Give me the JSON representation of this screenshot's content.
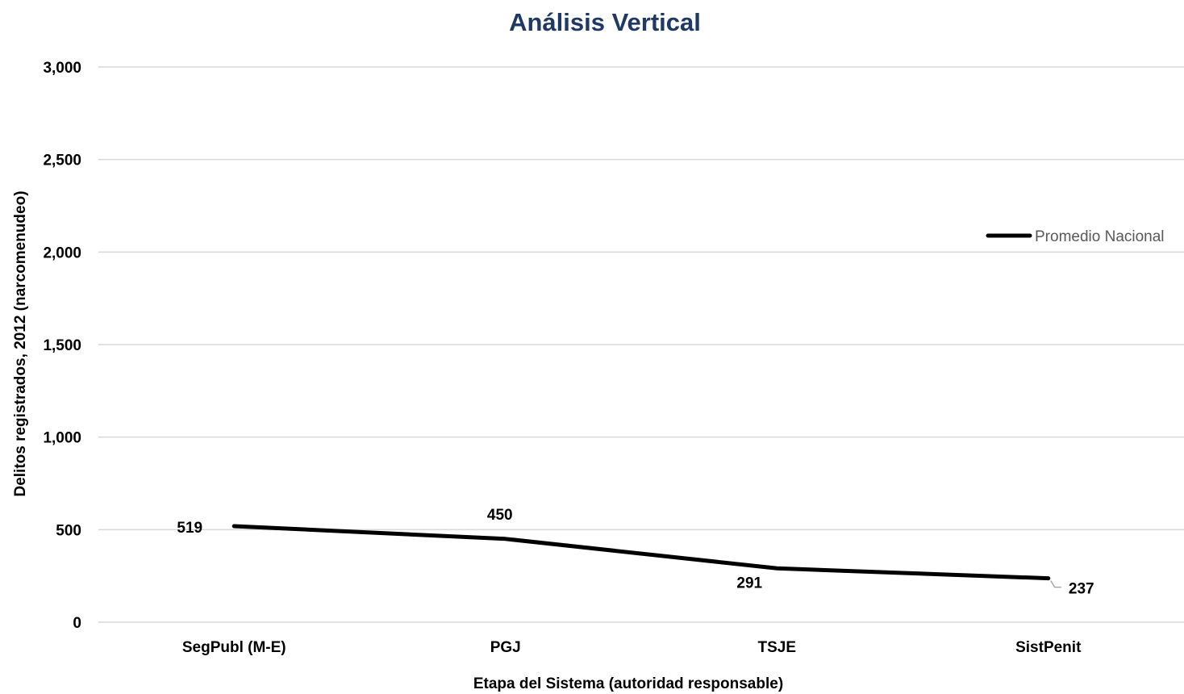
{
  "chart_data": {
    "type": "line",
    "title": "Análisis Vertical",
    "xlabel": "Etapa del Sistema (autoridad responsable)",
    "ylabel": "Delitos registrados, 2012 (narcomenudeo)",
    "categories": [
      "SegPubl (M-E)",
      "PGJ",
      "TSJE",
      "SistPenit"
    ],
    "series": [
      {
        "name": "Promedio Nacional",
        "values": [
          519,
          450,
          291,
          237
        ],
        "color": "#000000"
      }
    ],
    "ylim": [
      0,
      3000
    ],
    "yticks": [
      0,
      500,
      1000,
      1500,
      2000,
      2500,
      3000
    ],
    "ytick_labels": [
      "0",
      "500",
      "1,000",
      "1,500",
      "2,000",
      "2,500",
      "3,000"
    ],
    "data_labels": [
      "519",
      "450",
      "291",
      "237"
    ],
    "grid": true,
    "legend_position": "right"
  }
}
